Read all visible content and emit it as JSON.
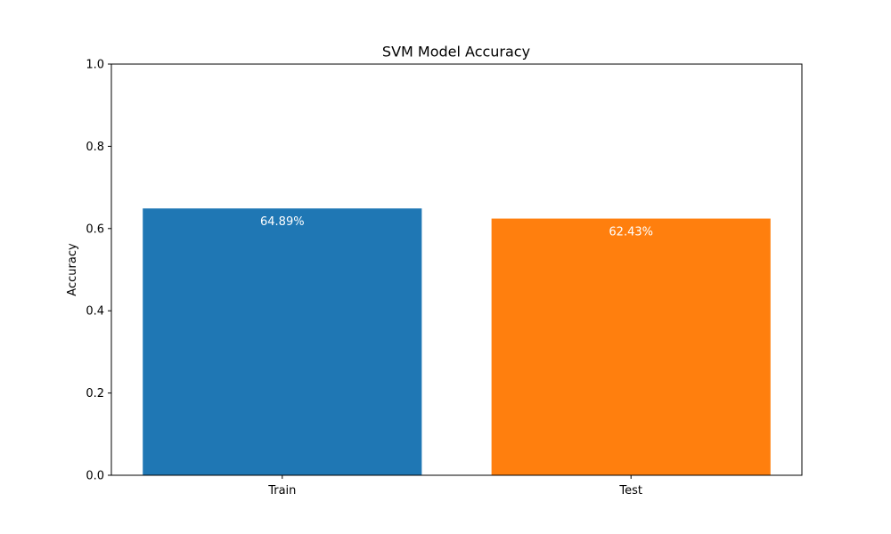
{
  "chart_data": {
    "type": "bar",
    "title": "SVM Model Accuracy",
    "xlabel": "",
    "ylabel": "Accuracy",
    "categories": [
      "Train",
      "Test"
    ],
    "values": [
      0.6489,
      0.6243
    ],
    "data_labels": [
      "64.89%",
      "62.43%"
    ],
    "colors": [
      "#1f77b4",
      "#ff7f0e"
    ],
    "ylim": [
      0,
      1.0
    ],
    "yticks": [
      0.0,
      0.2,
      0.4,
      0.6,
      0.8,
      1.0
    ],
    "ytick_labels": [
      "0.0",
      "0.2",
      "0.4",
      "0.6",
      "0.8",
      "1.0"
    ],
    "grid": false,
    "legend": "none"
  }
}
